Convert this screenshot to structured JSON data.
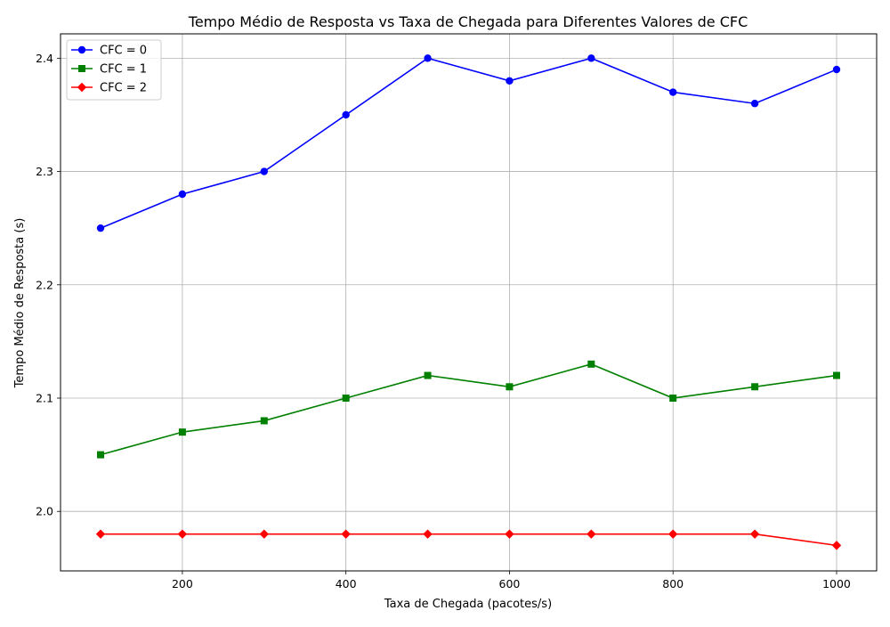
{
  "chart_data": {
    "type": "line",
    "title": "Tempo Médio de Resposta vs Taxa de Chegada para Diferentes Valores de CFC",
    "xlabel": "Taxa de Chegada (pacotes/s)",
    "ylabel": "Tempo Médio de Resposta (s)",
    "x": [
      100,
      200,
      300,
      400,
      500,
      600,
      700,
      800,
      900,
      1000
    ],
    "xlim": [
      51,
      1049
    ],
    "ylim": [
      1.9475,
      2.4215
    ],
    "xticks": [
      200,
      400,
      600,
      800,
      1000
    ],
    "yticks": [
      2.0,
      2.1,
      2.2,
      2.3,
      2.4
    ],
    "xtick_labels": [
      "200",
      "400",
      "600",
      "800",
      "1000"
    ],
    "ytick_labels": [
      "2.0",
      "2.1",
      "2.2",
      "2.3",
      "2.4"
    ],
    "grid": true,
    "legend_position": "top-left",
    "series": [
      {
        "name": "CFC = 0",
        "color": "#0000ff",
        "marker": "circle",
        "values": [
          2.25,
          2.28,
          2.3,
          2.35,
          2.4,
          2.38,
          2.4,
          2.37,
          2.36,
          2.39
        ]
      },
      {
        "name": "CFC = 1",
        "color": "#008000",
        "marker": "square",
        "values": [
          2.05,
          2.07,
          2.08,
          2.1,
          2.12,
          2.11,
          2.13,
          2.1,
          2.11,
          2.12
        ]
      },
      {
        "name": "CFC = 2",
        "color": "#ff0000",
        "marker": "diamond",
        "values": [
          1.98,
          1.98,
          1.98,
          1.98,
          1.98,
          1.98,
          1.98,
          1.98,
          1.98,
          1.97
        ]
      }
    ]
  }
}
